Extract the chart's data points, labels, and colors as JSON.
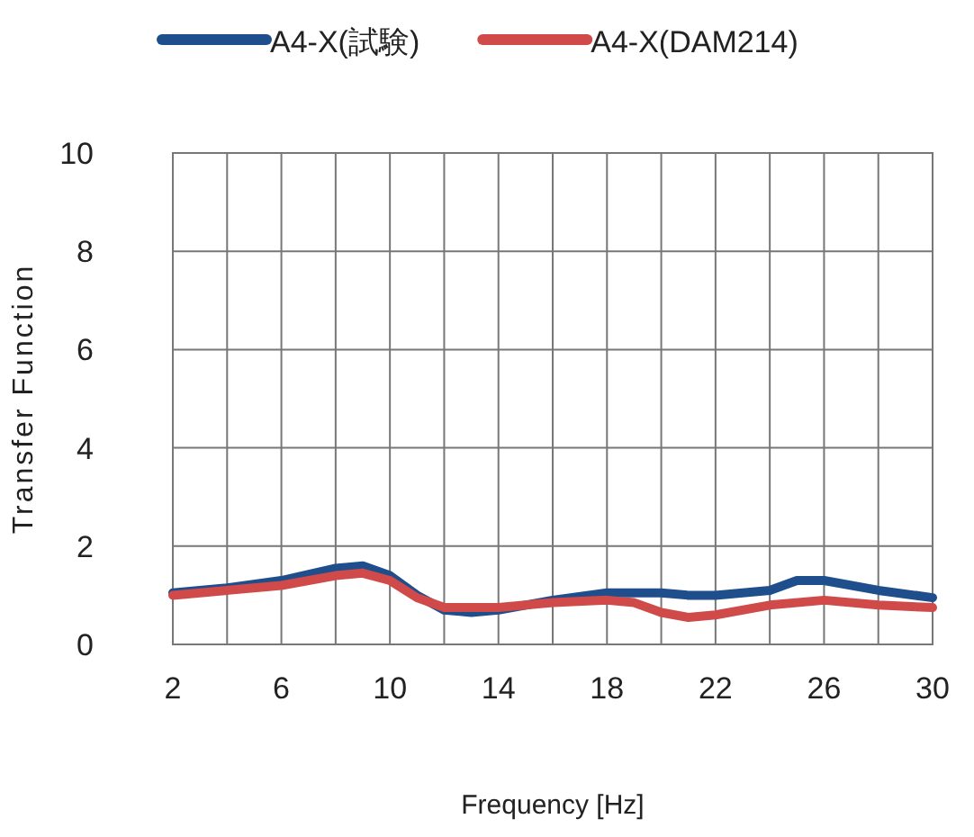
{
  "chart_data": {
    "type": "line",
    "xlabel": "Frequency [Hz]",
    "ylabel": "Transfer Function",
    "xlim": [
      2,
      30
    ],
    "ylim": [
      0,
      10
    ],
    "xticks": [
      2,
      {
        "value": 4,
        "label": null
      },
      6,
      {
        "value": 8,
        "label": null
      },
      10,
      {
        "value": 12,
        "label": null
      },
      14,
      {
        "value": 16,
        "label": null
      },
      18,
      {
        "value": 20,
        "label": null
      },
      22,
      {
        "value": 24,
        "label": null
      },
      26,
      {
        "value": 28,
        "label": null
      },
      30
    ],
    "yticks": [
      0,
      2,
      4,
      6,
      8,
      10
    ],
    "grid": true,
    "legend": "top",
    "marker": "none",
    "line_style": "solid",
    "series": [
      {
        "name": "A4-X(試験)",
        "color": "#1f4e8c",
        "x": [
          2,
          4,
          6,
          8,
          9,
          10,
          11,
          12,
          13,
          14,
          15,
          16,
          18,
          20,
          21,
          22,
          24,
          25,
          26,
          28,
          30
        ],
        "values": [
          1.05,
          1.15,
          1.3,
          1.55,
          1.6,
          1.4,
          1.0,
          0.7,
          0.65,
          0.7,
          0.8,
          0.9,
          1.05,
          1.05,
          1.0,
          1.0,
          1.1,
          1.3,
          1.3,
          1.1,
          0.95
        ]
      },
      {
        "name": "A4-X(DAM214)",
        "color": "#d04a4a",
        "x": [
          2,
          4,
          6,
          8,
          9,
          10,
          11,
          12,
          14,
          16,
          18,
          19,
          20,
          21,
          22,
          24,
          26,
          28,
          30
        ],
        "values": [
          1.0,
          1.1,
          1.2,
          1.4,
          1.45,
          1.3,
          0.95,
          0.75,
          0.75,
          0.85,
          0.9,
          0.85,
          0.65,
          0.55,
          0.6,
          0.8,
          0.9,
          0.8,
          0.75
        ]
      }
    ]
  }
}
